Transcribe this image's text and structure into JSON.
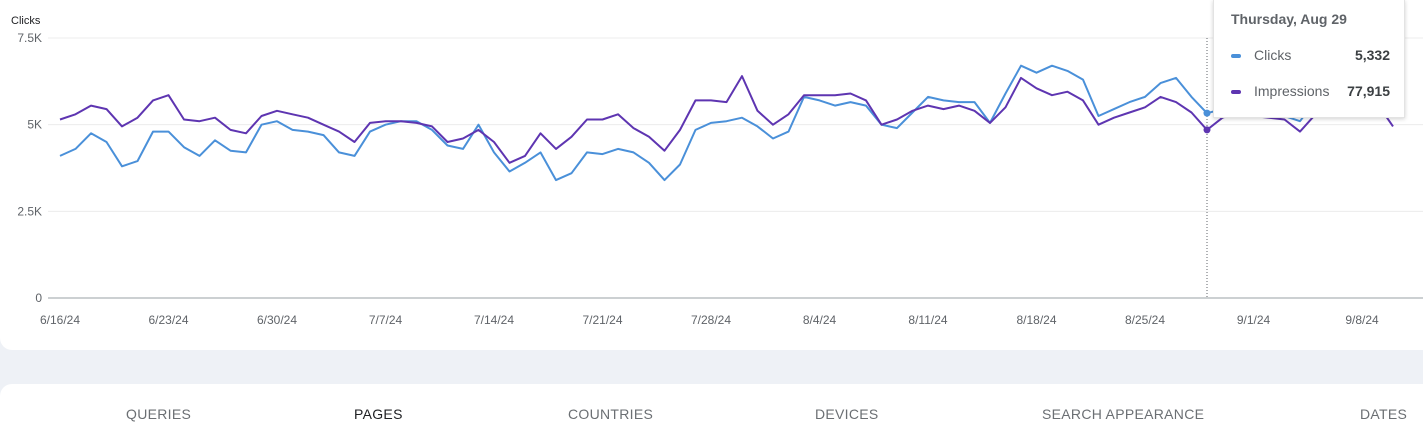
{
  "chart_data": {
    "type": "line",
    "ylabel": "Clicks",
    "ylim": [
      0,
      7500
    ],
    "yticks": [
      {
        "value": 0,
        "label": "0"
      },
      {
        "value": 2500,
        "label": "2.5K"
      },
      {
        "value": 5000,
        "label": "5K"
      },
      {
        "value": 7500,
        "label": "7.5K"
      }
    ],
    "xticks": [
      "6/16/24",
      "6/23/24",
      "6/30/24",
      "7/7/24",
      "7/14/24",
      "7/21/24",
      "7/28/24",
      "8/4/24",
      "8/11/24",
      "8/18/24",
      "8/25/24",
      "9/1/24",
      "9/8/24"
    ],
    "x_start": "6/16/24",
    "series": [
      {
        "name": "Clicks",
        "color": "#4a90d9",
        "values": [
          4100,
          4300,
          4750,
          4500,
          3800,
          3950,
          4800,
          4800,
          4350,
          4100,
          4550,
          4250,
          4200,
          5000,
          5100,
          4850,
          4800,
          4700,
          4200,
          4100,
          4800,
          5000,
          5100,
          5100,
          4850,
          4400,
          4300,
          5000,
          4200,
          3650,
          3900,
          4200,
          3400,
          3600,
          4200,
          4150,
          4300,
          4200,
          3900,
          3400,
          3850,
          4850,
          5050,
          5100,
          5200,
          4950,
          4600,
          4800,
          5800,
          5700,
          5550,
          5650,
          5550,
          5000,
          4900,
          5350,
          5800,
          5700,
          5650,
          5650,
          5050,
          5900,
          6700,
          6500,
          6700,
          6550,
          6300,
          5250,
          5450,
          5650,
          5800,
          6200,
          6350,
          5800,
          5332,
          5450,
          5650,
          5450,
          5350,
          5250,
          5100,
          5700,
          5800,
          5900,
          5850,
          5500,
          5300
        ]
      },
      {
        "name": "Impressions",
        "color": "#5e35b1",
        "values": [
          5150,
          5300,
          5550,
          5450,
          4950,
          5200,
          5700,
          5850,
          5150,
          5100,
          5200,
          4850,
          4750,
          5250,
          5400,
          5300,
          5200,
          5000,
          4800,
          4500,
          5050,
          5100,
          5100,
          5050,
          4950,
          4500,
          4600,
          4850,
          4500,
          3900,
          4100,
          4750,
          4300,
          4650,
          5150,
          5150,
          5300,
          4900,
          4650,
          4250,
          4850,
          5700,
          5700,
          5650,
          6400,
          5400,
          5000,
          5300,
          5850,
          5850,
          5850,
          5900,
          5700,
          5000,
          5150,
          5400,
          5550,
          5450,
          5550,
          5400,
          5050,
          5500,
          6350,
          6050,
          5850,
          5950,
          5700,
          5000,
          5200,
          5350,
          5500,
          5800,
          5650,
          5350,
          4850,
          5200,
          5350,
          5250,
          5200,
          5150,
          4800,
          5300,
          5900,
          6050,
          5900,
          5600,
          4950
        ]
      }
    ],
    "hover": {
      "index": 74,
      "date": "Thursday, Aug 29",
      "rows": [
        {
          "name": "Clicks",
          "value": "5,332"
        },
        {
          "name": "Impressions",
          "value": "77,915"
        }
      ]
    }
  },
  "tooltip": {
    "date": "Thursday, Aug 29",
    "clicks_label": "Clicks",
    "clicks_value": "5,332",
    "impressions_label": "Impressions",
    "impressions_value": "77,915",
    "clicks_color": "#4a90d9",
    "impressions_color": "#5e35b1"
  },
  "tabs": [
    {
      "label": "QUERIES",
      "active": false
    },
    {
      "label": "PAGES",
      "active": true
    },
    {
      "label": "COUNTRIES",
      "active": false
    },
    {
      "label": "DEVICES",
      "active": false
    },
    {
      "label": "SEARCH APPEARANCE",
      "active": false
    },
    {
      "label": "DATES",
      "active": false
    }
  ]
}
